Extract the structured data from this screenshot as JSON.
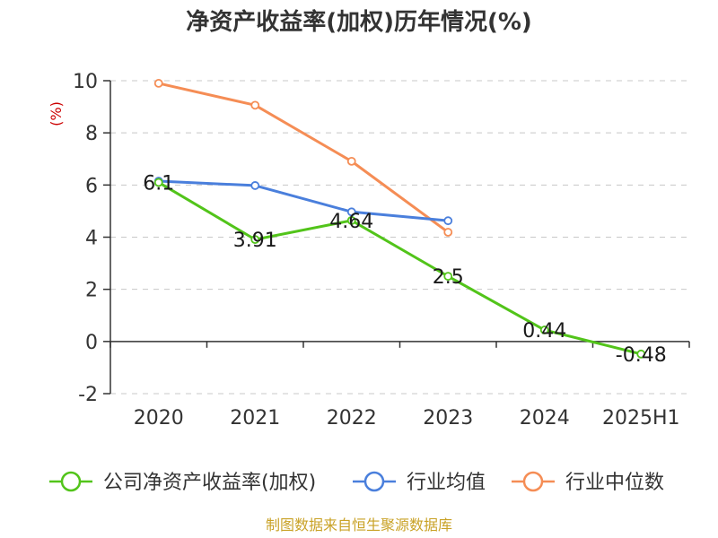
{
  "chart_data": {
    "type": "line",
    "title": "净资产收益率(加权)历年情况(%)",
    "ylabel": "(%)",
    "x": [
      "2020",
      "2021",
      "2022",
      "2023",
      "2024",
      "2025H1"
    ],
    "ylim": [
      -2,
      10
    ],
    "yticks": [
      -2,
      0,
      2,
      4,
      6,
      8,
      10
    ],
    "grid": true,
    "legend_position": "bottom",
    "series": [
      {
        "name": "公司净资产收益率(加权)",
        "color": "#52c41a",
        "values": [
          6.1,
          3.91,
          4.64,
          2.5,
          0.44,
          -0.48
        ],
        "labels": [
          "6.1",
          "3.91",
          "4.64",
          "2.5",
          "0.44",
          "-0.48"
        ]
      },
      {
        "name": "行业均值",
        "color": "#4a7fdc",
        "values": [
          6.15,
          5.98,
          4.97,
          4.63,
          null,
          null
        ]
      },
      {
        "name": "行业中位数",
        "color": "#f58d55",
        "values": [
          9.9,
          9.06,
          6.91,
          4.19,
          null,
          null
        ]
      }
    ],
    "source": "制图数据来自恒生聚源数据库"
  }
}
